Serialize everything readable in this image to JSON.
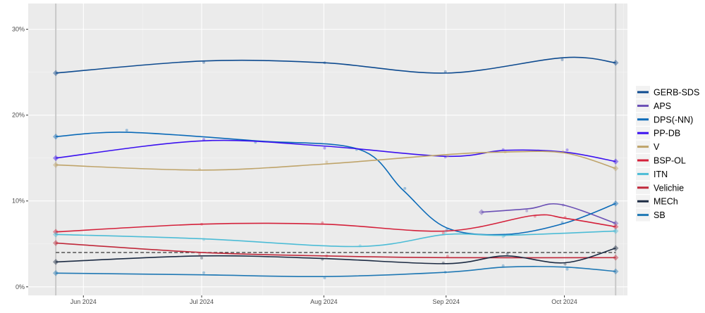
{
  "chart_data": {
    "type": "line",
    "title": "",
    "xlabel": "",
    "ylabel": "",
    "ylim": [
      -1,
      33
    ],
    "xlim": [
      "2024-05-18",
      "2024-10-17"
    ],
    "y_ticks": [
      {
        "v": 0,
        "label": "0%"
      },
      {
        "v": 10,
        "label": "10%"
      },
      {
        "v": 20,
        "label": "20%"
      },
      {
        "v": 30,
        "label": "30%"
      }
    ],
    "x_ticks": [
      {
        "d": "2024-06-01",
        "label": "Jun 2024"
      },
      {
        "d": "2024-07-01",
        "label": "Jul 2024"
      },
      {
        "d": "2024-08-01",
        "label": "Aug 2024"
      },
      {
        "d": "2024-09-01",
        "label": "Sep 2024"
      },
      {
        "d": "2024-10-01",
        "label": "Oct 2024"
      }
    ],
    "vertical_markers": [
      "2024-05-25",
      "2024-10-14"
    ],
    "threshold": 4,
    "grid": true,
    "legend_position": "right",
    "series": [
      {
        "name": "GERB-SDS",
        "color": "#0d4a8f",
        "points": [
          [
            "2024-05-25",
            24.9
          ],
          [
            "2024-07-01",
            26.3
          ],
          [
            "2024-08-01",
            26.1
          ],
          [
            "2024-09-01",
            24.9
          ],
          [
            "2024-10-01",
            26.7
          ],
          [
            "2024-10-14",
            26.1
          ]
        ]
      },
      {
        "name": "APS",
        "color": "#6a4fb5",
        "points": [
          [
            "2024-09-10",
            8.7
          ],
          [
            "2024-09-22",
            9.1
          ],
          [
            "2024-09-30",
            9.6
          ],
          [
            "2024-10-14",
            7.4
          ]
        ]
      },
      {
        "name": "DPS(-NN)",
        "color": "#0a6ab8",
        "points": [
          [
            "2024-05-25",
            17.5
          ],
          [
            "2024-06-12",
            18.0
          ],
          [
            "2024-07-15",
            17.0
          ],
          [
            "2024-08-10",
            16.0
          ],
          [
            "2024-08-21",
            11.3
          ],
          [
            "2024-09-01",
            6.9
          ],
          [
            "2024-09-16",
            6.1
          ],
          [
            "2024-10-01",
            7.4
          ],
          [
            "2024-10-14",
            9.7
          ]
        ]
      },
      {
        "name": "PP-DB",
        "color": "#3a10f0",
        "points": [
          [
            "2024-05-25",
            15.0
          ],
          [
            "2024-07-01",
            17.0
          ],
          [
            "2024-08-01",
            16.4
          ],
          [
            "2024-09-01",
            15.2
          ],
          [
            "2024-09-16",
            15.9
          ],
          [
            "2024-10-01",
            15.7
          ],
          [
            "2024-10-14",
            14.6
          ]
        ]
      },
      {
        "name": "V",
        "color": "#bfa46a",
        "points": [
          [
            "2024-05-25",
            14.2
          ],
          [
            "2024-07-01",
            13.6
          ],
          [
            "2024-08-01",
            14.3
          ],
          [
            "2024-09-01",
            15.4
          ],
          [
            "2024-09-16",
            15.7
          ],
          [
            "2024-10-01",
            15.6
          ],
          [
            "2024-10-14",
            13.8
          ]
        ]
      },
      {
        "name": "BSP-OL",
        "color": "#d4203a",
        "points": [
          [
            "2024-05-25",
            6.4
          ],
          [
            "2024-07-01",
            7.3
          ],
          [
            "2024-08-01",
            7.3
          ],
          [
            "2024-09-01",
            6.5
          ],
          [
            "2024-09-23",
            8.3
          ],
          [
            "2024-10-01",
            8.0
          ],
          [
            "2024-10-14",
            7.0
          ]
        ]
      },
      {
        "name": "ITN",
        "color": "#4cbcd6",
        "points": [
          [
            "2024-05-25",
            6.1
          ],
          [
            "2024-07-01",
            5.6
          ],
          [
            "2024-08-10",
            4.7
          ],
          [
            "2024-09-01",
            6.1
          ],
          [
            "2024-09-16",
            6.0
          ],
          [
            "2024-10-14",
            6.5
          ]
        ]
      },
      {
        "name": "Velichie",
        "color": "#c0283a",
        "points": [
          [
            "2024-05-25",
            5.1
          ],
          [
            "2024-07-01",
            4.0
          ],
          [
            "2024-08-01",
            3.6
          ],
          [
            "2024-09-01",
            3.4
          ],
          [
            "2024-10-14",
            3.4
          ]
        ]
      },
      {
        "name": "MECh",
        "color": "#1b2a42",
        "points": [
          [
            "2024-05-25",
            2.9
          ],
          [
            "2024-07-01",
            3.6
          ],
          [
            "2024-08-01",
            3.3
          ],
          [
            "2024-09-01",
            2.7
          ],
          [
            "2024-09-16",
            3.6
          ],
          [
            "2024-10-01",
            2.8
          ],
          [
            "2024-10-14",
            4.5
          ]
        ]
      },
      {
        "name": "SB",
        "color": "#1f78b4",
        "points": [
          [
            "2024-05-25",
            1.6
          ],
          [
            "2024-07-01",
            1.4
          ],
          [
            "2024-08-01",
            1.2
          ],
          [
            "2024-09-01",
            1.7
          ],
          [
            "2024-09-16",
            2.3
          ],
          [
            "2024-10-01",
            2.3
          ],
          [
            "2024-10-14",
            1.8
          ]
        ]
      }
    ]
  }
}
